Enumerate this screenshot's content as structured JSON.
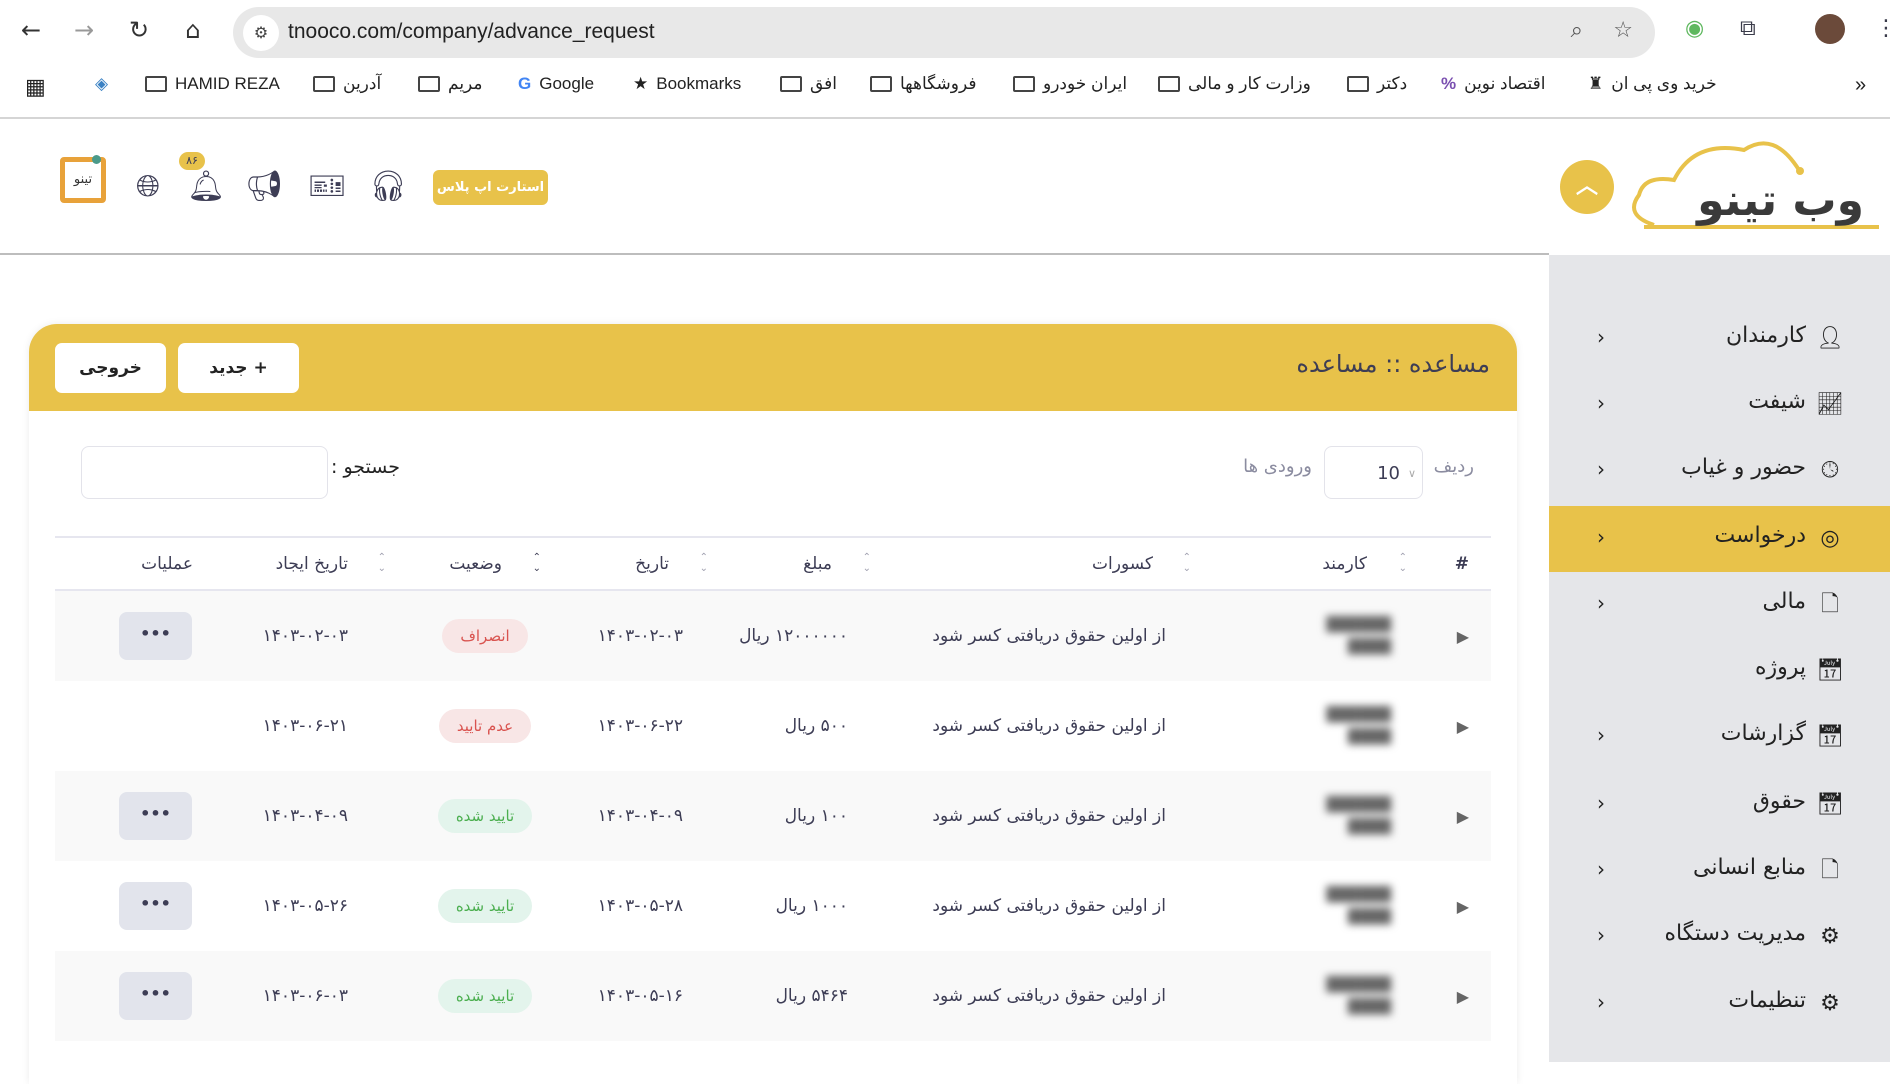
{
  "browser": {
    "url": "tnooco.com/company/advance_request",
    "bookmarks": [
      "HAMID REZA",
      "آدرین",
      "مریم",
      "Google",
      "Bookmarks",
      "افق",
      "فروشگاهها",
      "ایران خودرو",
      "وزارت کار و مالی",
      "دکتر",
      "اقتصاد نوین",
      "خرید وی پی ان"
    ]
  },
  "header": {
    "upgrade_button": "استارت اپ پلاس",
    "notification_count": "۸۶",
    "logo_text": "تینو"
  },
  "sidebar": {
    "logo_text": "وب تینو",
    "items": [
      {
        "label": "کارمندان",
        "icon": "user-icon",
        "active": false,
        "chevron": true
      },
      {
        "label": "شیفت",
        "icon": "chart-file-icon",
        "active": false,
        "chevron": true
      },
      {
        "label": "حضور و غیاب",
        "icon": "clock-icon",
        "active": false,
        "chevron": true
      },
      {
        "label": "درخواست",
        "icon": "target-icon",
        "active": true,
        "chevron": true
      },
      {
        "label": "مالی",
        "icon": "file-icon",
        "active": false,
        "chevron": true
      },
      {
        "label": "پروژه",
        "icon": "calendar-clock-icon",
        "active": false,
        "chevron": false
      },
      {
        "label": "گزارشات",
        "icon": "calendar-clock-icon",
        "active": false,
        "chevron": true
      },
      {
        "label": "حقوق",
        "icon": "calendar-clock-icon",
        "active": false,
        "chevron": true
      },
      {
        "label": "منابع انسانی",
        "icon": "file-icon",
        "active": false,
        "chevron": true
      },
      {
        "label": "مدیریت دستگاه",
        "icon": "gear-icon",
        "active": false,
        "chevron": true
      },
      {
        "label": "تنظیمات",
        "icon": "gear-icon",
        "active": false,
        "chevron": true
      }
    ]
  },
  "card": {
    "title": "مساعده :: مساعده",
    "new_button": "+ جدید",
    "export_button": "خروجی",
    "length_label_before": "ردیف",
    "length_value": "10",
    "length_label_after": "ورودی ها",
    "search_label": "جستجو :",
    "search_value": ""
  },
  "table": {
    "columns": [
      "#",
      "کارمند",
      "کسورات",
      "مبلغ",
      "تاریخ",
      "وضعیت",
      "تاریخ ایجاد",
      "عملیات"
    ],
    "rows": [
      {
        "deduction": "از اولین حقوق دریافتی کسر شود",
        "amount": "۱۲۰۰۰۰۰۰ ریال",
        "date": "۱۴۰۳-۰۲-۰۳",
        "status": "انصراف",
        "status_type": "cancel",
        "created": "۱۴۰۳-۰۲-۰۳",
        "ops": "•••"
      },
      {
        "deduction": "از اولین حقوق دریافتی کسر شود",
        "amount": "۵۰۰ ریال",
        "date": "۱۴۰۳-۰۶-۲۲",
        "status": "عدم تایید",
        "status_type": "rejected",
        "created": "۱۴۰۳-۰۶-۲۱",
        "ops": ""
      },
      {
        "deduction": "از اولین حقوق دریافتی کسر شود",
        "amount": "۱۰۰ ریال",
        "date": "۱۴۰۳-۰۴-۰۹",
        "status": "تایید شده",
        "status_type": "approved",
        "created": "۱۴۰۳-۰۴-۰۹",
        "ops": "•••"
      },
      {
        "deduction": "از اولین حقوق دریافتی کسر شود",
        "amount": "۱۰۰۰ ریال",
        "date": "۱۴۰۳-۰۵-۲۸",
        "status": "تایید شده",
        "status_type": "approved",
        "created": "۱۴۰۳-۰۵-۲۶",
        "ops": "•••"
      },
      {
        "deduction": "از اولین حقوق دریافتی کسر شود",
        "amount": "۵۴۶۴ ریال",
        "date": "۱۴۰۳-۰۵-۱۶",
        "status": "تایید شده",
        "status_type": "approved",
        "created": "۱۴۰۳-۰۶-۰۳",
        "ops": "•••"
      }
    ]
  },
  "colors": {
    "accent": "#e8c24a",
    "sidebar_bg": "#e5e6e9",
    "cancel": "#d9534f",
    "approved": "#4caf50"
  }
}
